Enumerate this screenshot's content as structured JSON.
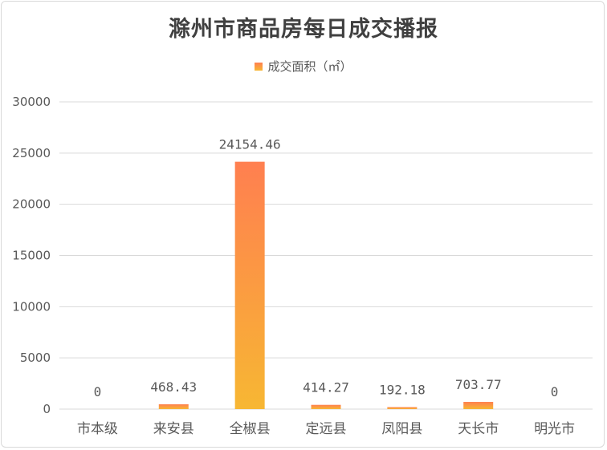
{
  "chart_data": {
    "type": "bar",
    "title": "滁州市商品房每日成交播报",
    "categories": [
      "市本级",
      "来安县",
      "全椒县",
      "定远县",
      "凤阳县",
      "天长市",
      "明光市"
    ],
    "series": [
      {
        "name": "成交面积（㎡）",
        "values": [
          0,
          468.43,
          24154.46,
          414.27,
          192.18,
          703.77,
          0
        ]
      }
    ],
    "data_labels": [
      "0",
      "468.43",
      "24154.46",
      "414.27",
      "192.18",
      "703.77",
      "0"
    ],
    "yticks": [
      "0",
      "5000",
      "10000",
      "15000",
      "20000",
      "25000",
      "30000"
    ],
    "ylim": [
      0,
      30000
    ],
    "xlabel": "",
    "ylabel": "",
    "grid": true,
    "legend_position": "top",
    "colors": {
      "bar_top": "#ff7f50",
      "bar_bottom": "#f7b733",
      "grid": "#d9d9d9",
      "text": "#595959"
    }
  }
}
